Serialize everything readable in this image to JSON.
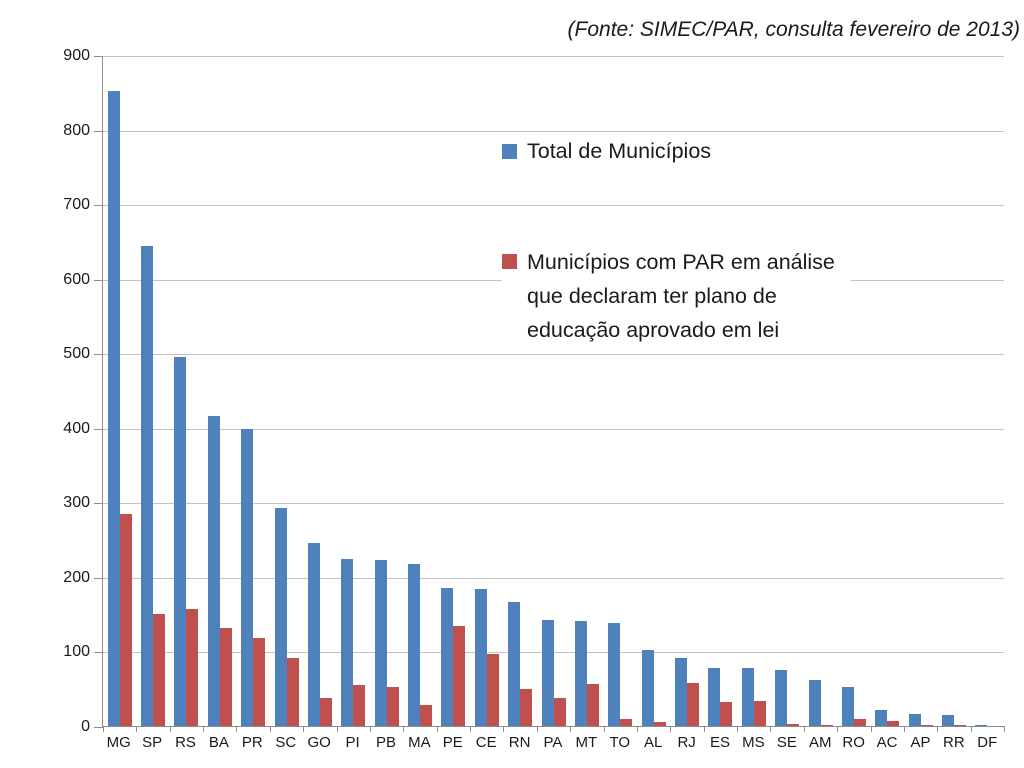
{
  "source_note": "(Fonte: SIMEC/PAR, consulta fevereiro de 2013)",
  "legend": [
    {
      "label": "Total de Municípios",
      "color": "#4F81BD"
    },
    {
      "label": "Municípios com PAR em análise que declaram ter plano de educação aprovado em lei",
      "color": "#C0504D"
    }
  ],
  "colors": {
    "series_blue": "#4F81BD",
    "series_red": "#C0504D",
    "gridline": "#C3C3C3",
    "axis": "#8C8C8C",
    "text": "#1A1A1A",
    "background": "#FFFFFF"
  },
  "chart_data": {
    "type": "bar",
    "title": "",
    "xlabel": "",
    "ylabel": "",
    "categories": [
      "MG",
      "SP",
      "RS",
      "BA",
      "PR",
      "SC",
      "GO",
      "PI",
      "PB",
      "MA",
      "PE",
      "CE",
      "RN",
      "PA",
      "MT",
      "TO",
      "AL",
      "RJ",
      "ES",
      "MS",
      "SE",
      "AM",
      "RO",
      "AC",
      "AP",
      "RR",
      "DF"
    ],
    "series": [
      {
        "name": "Total de Municípios",
        "color": "#4F81BD",
        "values": [
          853,
          645,
          496,
          417,
          399,
          293,
          246,
          224,
          223,
          217,
          185,
          184,
          167,
          143,
          141,
          139,
          102,
          92,
          78,
          78,
          75,
          62,
          52,
          22,
          16,
          15,
          1
        ]
      },
      {
        "name": "Municípios com PAR em análise que declaram ter plano de educação aprovado em lei",
        "color": "#C0504D",
        "values": [
          285,
          150,
          157,
          131,
          118,
          91,
          38,
          55,
          52,
          28,
          135,
          97,
          50,
          37,
          57,
          10,
          5,
          58,
          32,
          33,
          3,
          2,
          10,
          7,
          2,
          1,
          0
        ]
      }
    ],
    "ylim": [
      0,
      900
    ],
    "yticks": [
      0,
      100,
      200,
      300,
      400,
      500,
      600,
      700,
      800,
      900
    ],
    "grid": true,
    "legend_position": "inside-top-right",
    "annotation": "(Fonte: SIMEC/PAR, consulta fevereiro de 2013)"
  }
}
